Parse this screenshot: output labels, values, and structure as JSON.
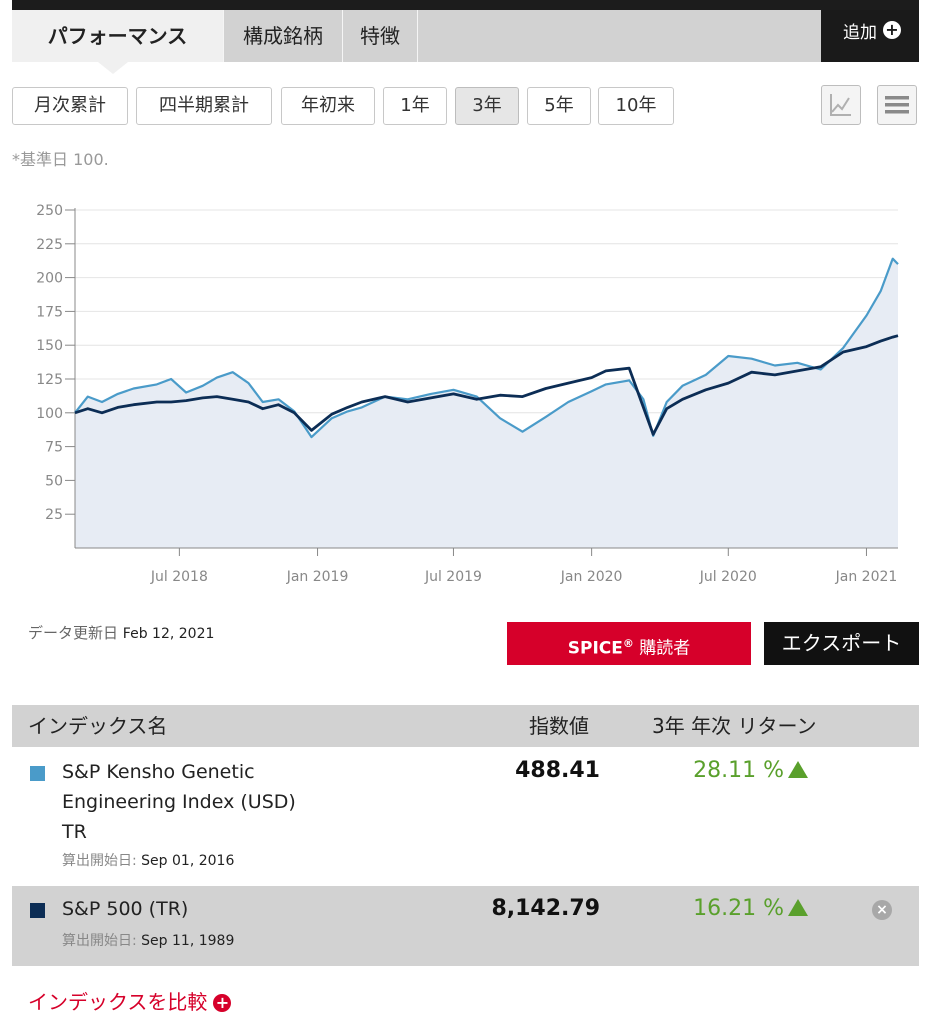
{
  "tabs": [
    {
      "label": "パフォーマンス",
      "active": true
    },
    {
      "label": "構成銘柄",
      "active": false
    },
    {
      "label": "特徴",
      "active": false
    }
  ],
  "add_label": "追加",
  "periods": [
    {
      "label": "月次累計",
      "active": false
    },
    {
      "label": "四半期累計",
      "active": false
    },
    {
      "label": "年初来",
      "active": false
    },
    {
      "label": "1年",
      "active": false
    },
    {
      "label": "3年",
      "active": true
    },
    {
      "label": "5年",
      "active": false
    },
    {
      "label": "10年",
      "active": false
    }
  ],
  "view_icons": [
    "line-chart-icon",
    "table-view-icon"
  ],
  "note": "*基準日 100.",
  "chart_data": {
    "type": "line",
    "ylim": [
      0,
      250
    ],
    "yticks": [
      25,
      50,
      75,
      100,
      125,
      150,
      175,
      200,
      225,
      250
    ],
    "xticks": [
      "Jul 2018",
      "Jan 2019",
      "Jul 2019",
      "Jan 2020",
      "Jul 2020",
      "Jan 2021"
    ],
    "grid": true,
    "x": [
      "2018-02-12",
      "2018-03-01",
      "2018-03-20",
      "2018-04-10",
      "2018-05-01",
      "2018-06-01",
      "2018-06-20",
      "2018-07-10",
      "2018-08-01",
      "2018-08-20",
      "2018-09-10",
      "2018-10-01",
      "2018-10-20",
      "2018-11-10",
      "2018-12-01",
      "2018-12-24",
      "2019-01-20",
      "2019-02-10",
      "2019-03-01",
      "2019-04-01",
      "2019-05-01",
      "2019-06-01",
      "2019-07-01",
      "2019-08-01",
      "2019-09-01",
      "2019-10-01",
      "2019-11-01",
      "2019-12-01",
      "2020-01-01",
      "2020-01-20",
      "2020-02-20",
      "2020-03-10",
      "2020-03-23",
      "2020-04-10",
      "2020-05-01",
      "2020-06-01",
      "2020-07-01",
      "2020-08-01",
      "2020-09-01",
      "2020-10-01",
      "2020-11-01",
      "2020-12-01",
      "2021-01-01",
      "2021-01-20",
      "2021-02-05",
      "2021-02-12"
    ],
    "series": [
      {
        "name": "S&P Kensho Genetic Engineering Index (USD) TR",
        "color": "#4a9bc9",
        "values": [
          100,
          112,
          108,
          114,
          118,
          121,
          125,
          115,
          120,
          126,
          130,
          122,
          108,
          110,
          101,
          82,
          96,
          101,
          104,
          112,
          110,
          114,
          117,
          112,
          96,
          86,
          97,
          108,
          116,
          121,
          124,
          110,
          83,
          108,
          120,
          128,
          142,
          140,
          135,
          137,
          132,
          148,
          172,
          190,
          214,
          210
        ]
      },
      {
        "name": "S&P 500 (TR)",
        "color": "#0c2d55",
        "values": [
          100,
          103,
          100,
          104,
          106,
          108,
          108,
          109,
          111,
          112,
          110,
          108,
          103,
          106,
          100,
          87,
          99,
          104,
          108,
          112,
          108,
          111,
          114,
          110,
          113,
          112,
          118,
          122,
          126,
          131,
          133,
          104,
          84,
          103,
          110,
          117,
          122,
          130,
          128,
          131,
          134,
          145,
          149,
          153,
          156,
          157
        ]
      }
    ]
  },
  "updated_label": "データ更新日",
  "updated_date": "Feb 12, 2021",
  "spice_label": "SPICE",
  "spice_sup": "®",
  "spice_sub": " 購読者",
  "export_label": "エクスポート",
  "table": {
    "headers": {
      "name": "インデックス名",
      "value": "指数値",
      "return": "3年 年次 リターン"
    },
    "rows": [
      {
        "name_lines": [
          "S&P Kensho Genetic",
          "Engineering Index (USD)",
          "TR"
        ],
        "since_label": "算出開始日:",
        "since_date": "Sep 01, 2016",
        "value": "488.41",
        "return": "28.11 %",
        "color": "#4a9bc9"
      },
      {
        "name_lines": [
          "S&P 500 (TR)"
        ],
        "since_label": "算出開始日:",
        "since_date": "Sep 11, 1989",
        "value": "8,142.79",
        "return": "16.21 %",
        "color": "#0c2d55"
      }
    ]
  },
  "compare_label": "インデックスを比較"
}
